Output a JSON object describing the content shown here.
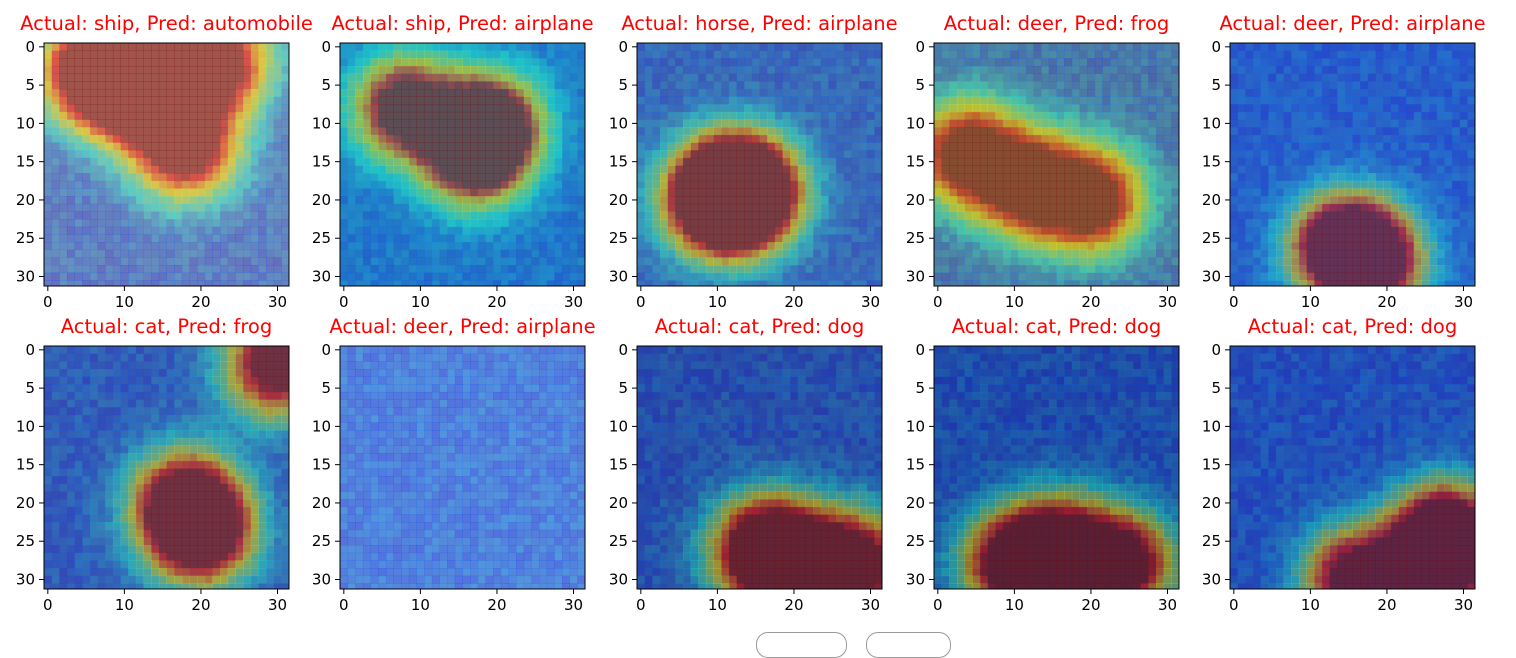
{
  "chart_data": {
    "type": "heatmap",
    "description_of_grid": "2 rows x 5 columns of 32x32 image overlays with Grad-CAM heatmaps",
    "panels": [
      {
        "title": "Actual: ship, Pred: automobile",
        "actual": "ship",
        "pred": "automobile",
        "hot": [
          [
            6,
            3
          ],
          [
            10,
            4
          ],
          [
            14,
            6
          ],
          [
            18,
            13
          ],
          [
            22,
            2
          ]
        ],
        "tint": "#b89a8a"
      },
      {
        "title": "Actual: ship, Pred: airplane",
        "actual": "ship",
        "pred": "airplane",
        "hot": [
          [
            19,
            10
          ],
          [
            17,
            14
          ],
          [
            8,
            8
          ]
        ],
        "tint": "#3f8a9a"
      },
      {
        "title": "Actual: horse, Pred: airplane",
        "actual": "horse",
        "pred": "airplane",
        "hot": [
          [
            12,
            19
          ],
          [
            10,
            20
          ],
          [
            14,
            19
          ]
        ],
        "tint": "#6c6f7a"
      },
      {
        "title": "Actual: deer, Pred: frog",
        "actual": "deer",
        "pred": "frog",
        "hot": [
          [
            4,
            14
          ],
          [
            12,
            18
          ],
          [
            20,
            20
          ]
        ],
        "tint": "#8a8a5c"
      },
      {
        "title": "Actual: deer, Pred: airplane",
        "actual": "deer",
        "pred": "airplane",
        "hot": [
          [
            14,
            26
          ],
          [
            18,
            28
          ]
        ],
        "tint": "#4a5a9c"
      },
      {
        "title": "Actual: cat, Pred: frog",
        "actual": "cat",
        "pred": "frog",
        "hot": [
          [
            18,
            20
          ],
          [
            20,
            24
          ],
          [
            30,
            2
          ]
        ],
        "tint": "#5e5a7a"
      },
      {
        "title": "Actual: deer, Pred: airplane",
        "actual": "deer",
        "pred": "airplane",
        "hot": [],
        "tint": "#9aa0c0"
      },
      {
        "title": "Actual: cat, Pred: dog",
        "actual": "cat",
        "pred": "dog",
        "hot": [
          [
            20,
            28
          ],
          [
            16,
            26
          ],
          [
            28,
            28
          ]
        ],
        "tint": "#4a4060"
      },
      {
        "title": "Actual: cat, Pred: dog",
        "actual": "cat",
        "pred": "dog",
        "hot": [
          [
            10,
            28
          ],
          [
            16,
            26
          ],
          [
            24,
            28
          ]
        ],
        "tint": "#3a3a60"
      },
      {
        "title": "Actual: cat, Pred: dog",
        "actual": "cat",
        "pred": "dog",
        "hot": [
          [
            26,
            28
          ],
          [
            28,
            24
          ],
          [
            16,
            30
          ]
        ],
        "tint": "#40407a"
      }
    ],
    "x_ticks": [
      0,
      10,
      20,
      30
    ],
    "y_ticks": [
      0,
      5,
      10,
      15,
      20,
      25,
      30
    ],
    "xlim": [
      -0.5,
      31.5
    ],
    "ylim": [
      31.5,
      -0.5
    ],
    "title_color": "#ff0000"
  }
}
